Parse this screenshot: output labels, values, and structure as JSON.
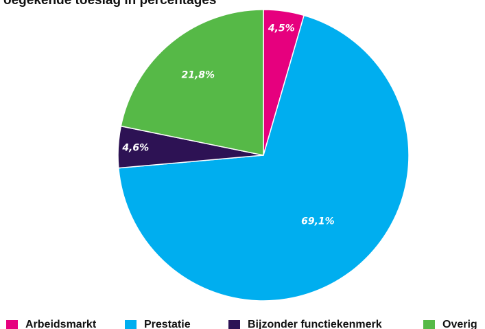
{
  "chart_data": {
    "type": "pie",
    "title": "oegekende toeslag in percentages",
    "slices": [
      {
        "name": "Arbeidsmarkt",
        "value": 4.5,
        "label": "4,5%",
        "color": "#e6007e"
      },
      {
        "name": "Prestatie",
        "value": 69.1,
        "label": "69,1%",
        "color": "#00aeef"
      },
      {
        "name": "Bijzonder functiekenmerk",
        "value": 4.6,
        "label": "4,6%",
        "color": "#2d1254"
      },
      {
        "name": "Overig",
        "value": 21.8,
        "label": "21,8%",
        "color": "#56b947"
      }
    ],
    "legend_position": "bottom"
  }
}
